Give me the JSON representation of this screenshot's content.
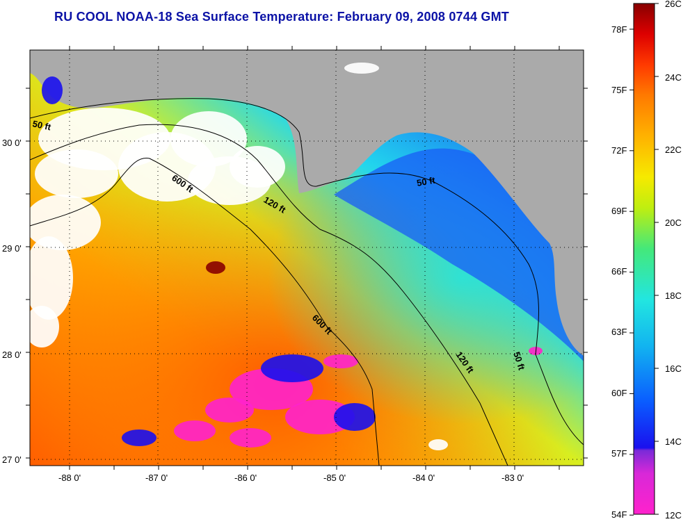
{
  "title": "RU COOL  NOAA-18  Sea Surface Temperature:  February 09, 2008 0744 GMT",
  "map": {
    "lon_labels": [
      "-88 0'",
      "-87 0'",
      "-86 0'",
      "-85 0'",
      "-84 0'",
      "-83 0'"
    ],
    "lat_labels": [
      "30 0'",
      "29 0'",
      "28 0'",
      "27 0'"
    ],
    "contour_labels": [
      "50 ft",
      "600 ft",
      "120 ft",
      "50 ft",
      "600 ft",
      "120 ft",
      "50 ft"
    ],
    "land_color": "#aaaaaa",
    "cloud_color": "#ffffff"
  },
  "colorbar": {
    "fahrenheit_labels": [
      "78F",
      "75F",
      "72F",
      "69F",
      "66F",
      "63F",
      "60F",
      "57F",
      "54F"
    ],
    "celsius_labels": [
      "26C",
      "24C",
      "22C",
      "20C",
      "18C",
      "16C",
      "14C",
      "12C"
    ],
    "colors": [
      "#ff22cc",
      "#7a2ad8",
      "#1010ee",
      "#0a5cff",
      "#12b4f0",
      "#22e6e0",
      "#44e87a",
      "#bfee10",
      "#f6ea00",
      "#ffb200",
      "#ff7a00",
      "#ff3a00",
      "#ee0000",
      "#b80000",
      "#880000"
    ]
  }
}
